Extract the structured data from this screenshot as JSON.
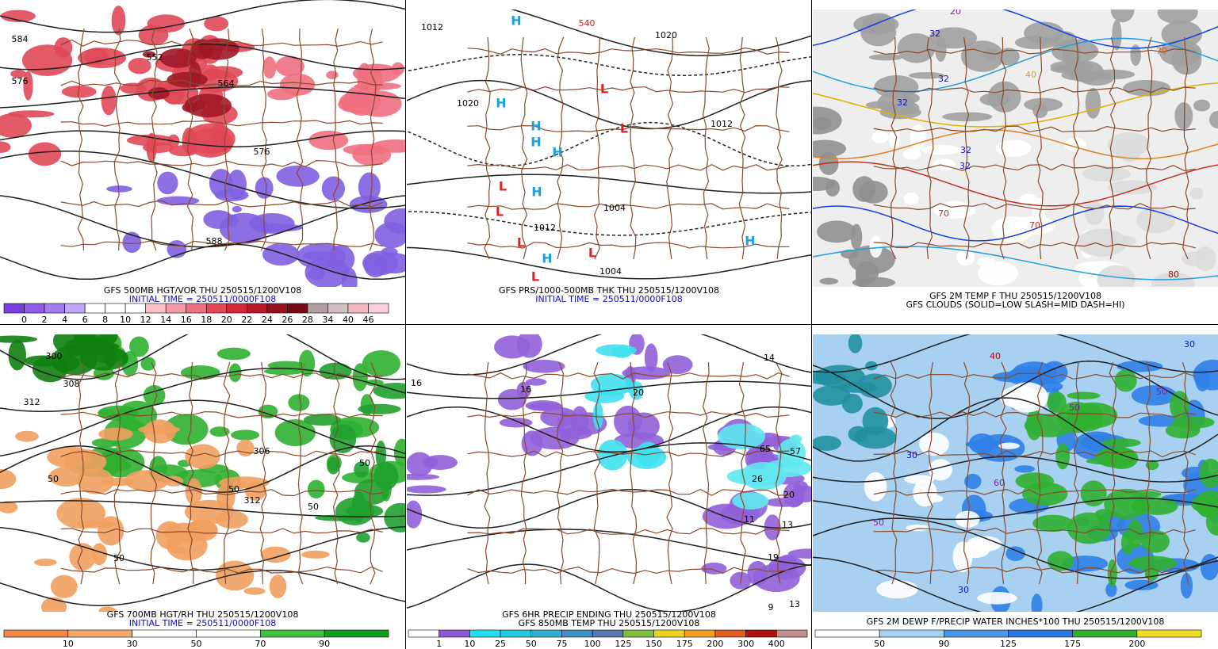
{
  "panels": [
    {
      "caption": [
        {
          "text": "GFS 500MB HGT/VOR THU 250515/1200V108",
          "color": "#000000"
        },
        {
          "text": "INITIAL TIME = 250511/0000F108",
          "color": "#1010c0"
        }
      ],
      "colorbar": {
        "labels": [
          0,
          2,
          4,
          6,
          8,
          10,
          12,
          14,
          16,
          18,
          20,
          22,
          24,
          26,
          28,
          34,
          40,
          46
        ],
        "colors": [
          "#7a3ee0",
          "#8e5ce8",
          "#a27cf0",
          "#c0a8f8",
          "#ffffff",
          "#ffffff",
          "#ffffff",
          "#f8c0c8",
          "#f49aa8",
          "#ee7080",
          "#e44858",
          "#d42838",
          "#b81828",
          "#981020",
          "#780818",
          "#b0a0a0",
          "#d0c0c0",
          "#f0b8c0",
          "#f8d0d8"
        ]
      },
      "map_labels": [
        {
          "text": "584",
          "color": "#000000"
        },
        {
          "text": "576",
          "color": "#000000"
        },
        {
          "text": "552",
          "color": "#000000"
        },
        {
          "text": "564",
          "color": "#000000"
        },
        {
          "text": "576",
          "color": "#000000"
        },
        {
          "text": "588",
          "color": "#000000"
        }
      ]
    },
    {
      "caption": [
        {
          "text": "GFS PRS/1000-500MB THK THU 250515/1200V108",
          "color": "#000000"
        },
        {
          "text": "INITIAL TIME = 250511/0000F108",
          "color": "#1010c0"
        }
      ],
      "map_labels": [
        {
          "text": "1012",
          "color": "#000000"
        },
        {
          "text": "1020",
          "color": "#000000"
        },
        {
          "text": "540",
          "color": "#d02020"
        },
        {
          "text": "1020",
          "color": "#000000"
        },
        {
          "text": "1012",
          "color": "#000000"
        },
        {
          "text": "1004",
          "color": "#000000"
        },
        {
          "text": "1012",
          "color": "#000000"
        },
        {
          "text": "1004",
          "color": "#000000"
        },
        {
          "text": "H",
          "color": "#1aa0e0"
        },
        {
          "text": "H",
          "color": "#1aa0e0"
        },
        {
          "text": "H",
          "color": "#1aa0e0"
        },
        {
          "text": "H",
          "color": "#1aa0e0"
        },
        {
          "text": "H",
          "color": "#1aa0e0"
        },
        {
          "text": "H",
          "color": "#1aa0e0"
        },
        {
          "text": "H",
          "color": "#1aa0e0"
        },
        {
          "text": "H",
          "color": "#1aa0e0"
        },
        {
          "text": "L",
          "color": "#e02020"
        },
        {
          "text": "L",
          "color": "#e02020"
        },
        {
          "text": "L",
          "color": "#e02020"
        },
        {
          "text": "L",
          "color": "#e02020"
        },
        {
          "text": "L",
          "color": "#e02020"
        },
        {
          "text": "L",
          "color": "#e02020"
        },
        {
          "text": "L",
          "color": "#e02020"
        }
      ]
    },
    {
      "caption": [
        {
          "text": "GFS 2M TEMP F THU 250515/1200V108",
          "color": "#000000"
        },
        {
          "text": "GFS CLOUDS (SOLID=LOW SLASH=MID DASH=HI)",
          "color": "#000000"
        }
      ],
      "map_labels": [
        {
          "text": "32",
          "color": "#1010d0"
        },
        {
          "text": "32",
          "color": "#1010d0"
        },
        {
          "text": "32",
          "color": "#1010d0"
        },
        {
          "text": "32",
          "color": "#1010d0"
        },
        {
          "text": "32",
          "color": "#1010d0"
        },
        {
          "text": "40",
          "color": "#e0a000"
        },
        {
          "text": "70",
          "color": "#d06020"
        },
        {
          "text": "70",
          "color": "#c03020"
        },
        {
          "text": "80",
          "color": "#a01010"
        },
        {
          "text": "20",
          "color": "#8020a0"
        },
        {
          "text": "70",
          "color": "#c03020"
        }
      ]
    },
    {
      "caption": [
        {
          "text": "GFS 700MB HGT/RH THU 250515/1200V108",
          "color": "#000000"
        },
        {
          "text": "INITIAL TIME = 250511/0000F108",
          "color": "#1010c0"
        }
      ],
      "colorbar": {
        "labels": [
          10,
          30,
          50,
          70,
          90
        ],
        "colors": [
          "#f08848",
          "#f4a870",
          "#ffffff",
          "#ffffff",
          "#40c040",
          "#10a020"
        ]
      },
      "map_labels": [
        {
          "text": "300",
          "color": "#000000"
        },
        {
          "text": "308",
          "color": "#000000"
        },
        {
          "text": "312",
          "color": "#000000"
        },
        {
          "text": "50",
          "color": "#000000"
        },
        {
          "text": "306",
          "color": "#000000"
        },
        {
          "text": "312",
          "color": "#000000"
        },
        {
          "text": "50",
          "color": "#000000"
        },
        {
          "text": "50",
          "color": "#000000"
        },
        {
          "text": "50",
          "color": "#000000"
        },
        {
          "text": "50",
          "color": "#000000"
        }
      ]
    },
    {
      "caption": [
        {
          "text": "GFS 6HR PRECIP ENDING THU 250515/1200V108",
          "color": "#000000"
        },
        {
          "text": "GFS 850MB TEMP THU 250515/1200V108",
          "color": "#000000"
        }
      ],
      "colorbar": {
        "labels": [
          1,
          10,
          25,
          50,
          75,
          100,
          125,
          150,
          175,
          200,
          300,
          400
        ],
        "colors": [
          "#ffffff",
          "#8a5ad8",
          "#20e0f0",
          "#20c8e0",
          "#30b0d0",
          "#4090c0",
          "#5878b0",
          "#80c040",
          "#f0d020",
          "#f0a020",
          "#e06020",
          "#b01010",
          "#c09090"
        ]
      },
      "map_labels": [
        {
          "text": "16",
          "color": "#000000"
        },
        {
          "text": "16",
          "color": "#000000"
        },
        {
          "text": "20",
          "color": "#000000"
        },
        {
          "text": "14",
          "color": "#000000"
        },
        {
          "text": "65",
          "color": "#000000"
        },
        {
          "text": "57",
          "color": "#000000"
        },
        {
          "text": "26",
          "color": "#000000"
        },
        {
          "text": "20",
          "color": "#000000"
        },
        {
          "text": "11",
          "color": "#000000"
        },
        {
          "text": "13",
          "color": "#000000"
        },
        {
          "text": "19",
          "color": "#000000"
        },
        {
          "text": "9",
          "color": "#000000"
        },
        {
          "text": "13",
          "color": "#000000"
        }
      ]
    },
    {
      "caption": [
        {
          "text": "GFS 2M DEWP F/PRECIP WATER INCHES*100 THU 250515/1200V108",
          "color": "#000000"
        }
      ],
      "colorbar": {
        "labels": [
          50,
          90,
          125,
          175,
          200
        ],
        "colors": [
          "#ffffff",
          "#a8d0f0",
          "#4a98ec",
          "#2878e0",
          "#30b030",
          "#f0e020"
        ]
      },
      "map_labels": [
        {
          "text": "30",
          "color": "#1010d0"
        },
        {
          "text": "30",
          "color": "#1010d0"
        },
        {
          "text": "50",
          "color": "#8020a0"
        },
        {
          "text": "40",
          "color": "#a01010"
        },
        {
          "text": "60",
          "color": "#8020a0"
        },
        {
          "text": "30",
          "color": "#1010d0"
        },
        {
          "text": "50",
          "color": "#8020a0"
        },
        {
          "text": "50",
          "color": "#8020a0"
        }
      ]
    }
  ]
}
